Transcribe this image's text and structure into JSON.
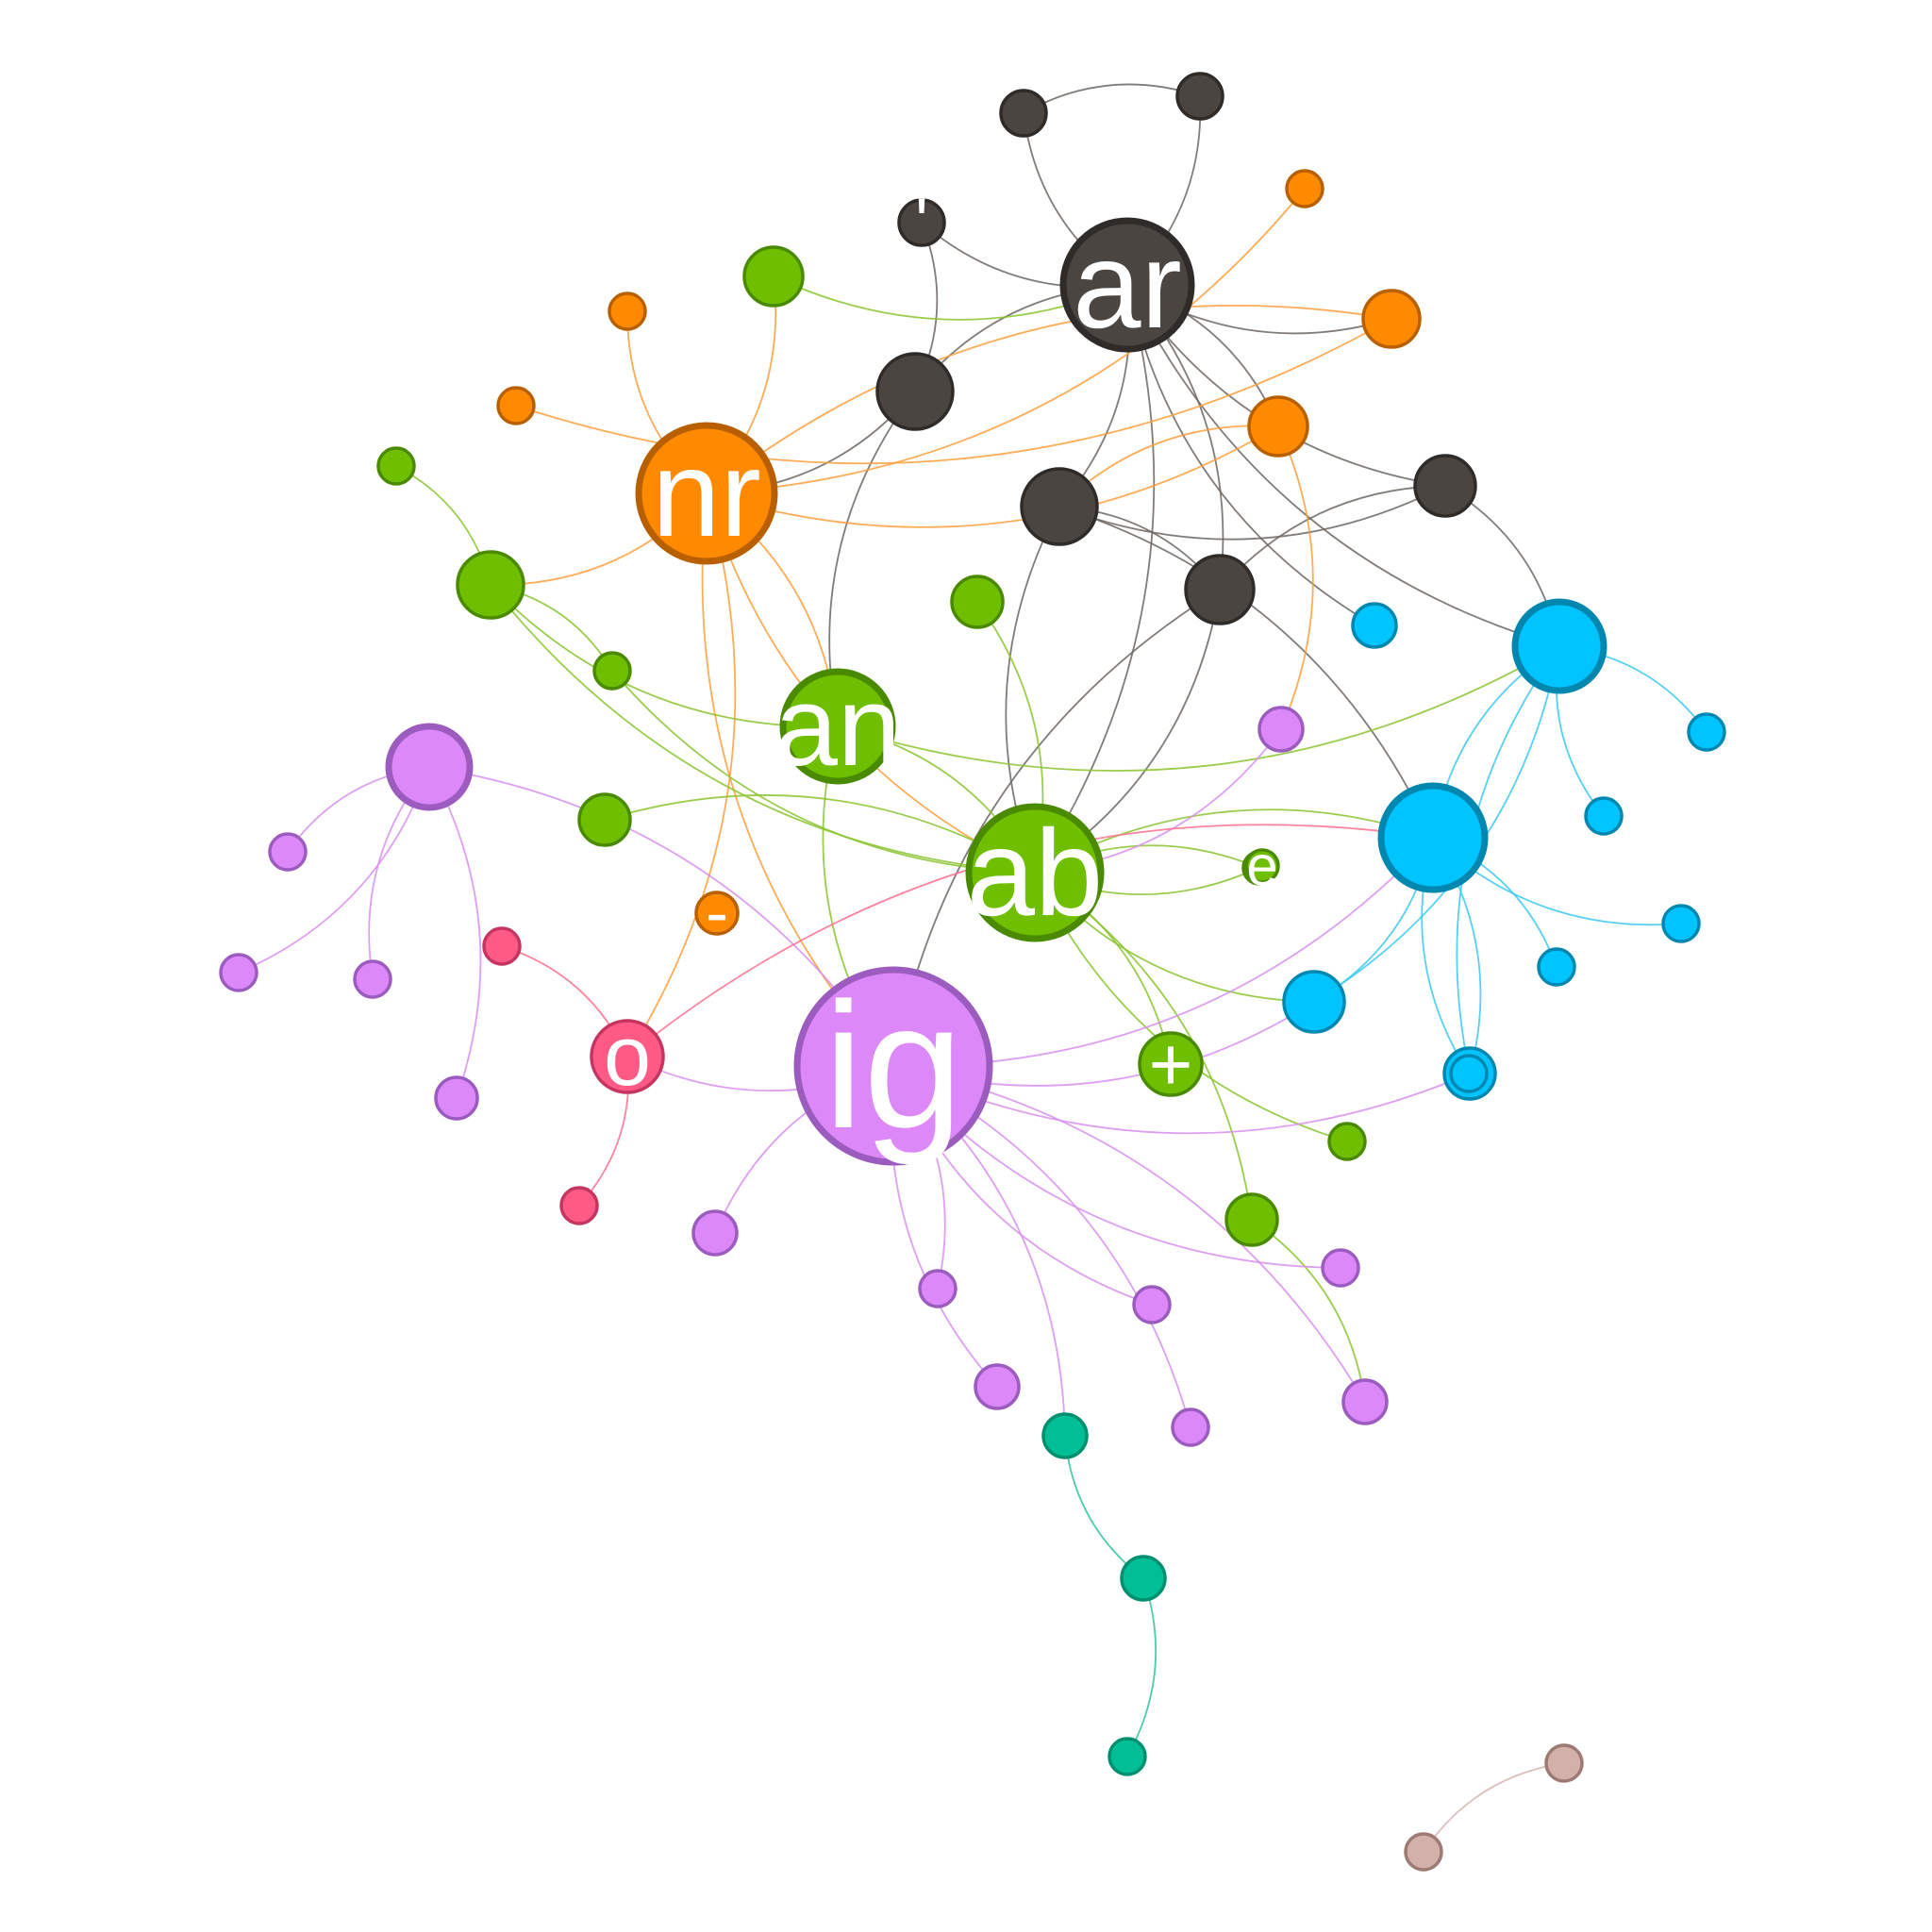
{
  "title": "",
  "colors": {
    "dark": {
      "fill": "#4a4540",
      "stroke": "#2f2b28",
      "edge": "#6b6560"
    },
    "orange": {
      "fill": "#ff8a00",
      "stroke": "#b86000",
      "edge": "#ff9d3a"
    },
    "green": {
      "fill": "#6fbf00",
      "stroke": "#4a8a00",
      "edge": "#8ac42e"
    },
    "purple": {
      "fill": "#dd88f8",
      "stroke": "#9c5cbf",
      "edge": "#d88ef0"
    },
    "pink": {
      "fill": "#ff5a86",
      "stroke": "#c43560",
      "edge": "#ff6f8f"
    },
    "blue": {
      "fill": "#00c4ff",
      "stroke": "#0087b0",
      "edge": "#39c8f0"
    },
    "teal": {
      "fill": "#00bf96",
      "stroke": "#00906f",
      "edge": "#2fc29f"
    },
    "rose": {
      "fill": "#d4b0aa",
      "stroke": "#9e7a74",
      "edge": "#d6b4b0"
    }
  },
  "labels": {
    "dark_hub": "ar",
    "orange_hub": "nr",
    "green_mid": "an",
    "green_hub": "ab",
    "purple_hub": "ig",
    "dark_small": "'",
    "pink_hub": "o",
    "orange_small": "-",
    "green_right": "e",
    "green_lower": "+"
  },
  "graph": {
    "nodes": [
      {
        "id": "d0",
        "group": "dark",
        "label": "dark_hub"
      },
      {
        "id": "d1",
        "group": "dark"
      },
      {
        "id": "d2",
        "group": "dark"
      },
      {
        "id": "d3",
        "group": "dark",
        "label": "dark_small"
      },
      {
        "id": "d4",
        "group": "dark"
      },
      {
        "id": "d5",
        "group": "dark"
      },
      {
        "id": "d6",
        "group": "dark"
      },
      {
        "id": "d7",
        "group": "dark"
      },
      {
        "id": "o0",
        "group": "orange",
        "label": "orange_hub"
      },
      {
        "id": "o1",
        "group": "orange"
      },
      {
        "id": "o2",
        "group": "orange"
      },
      {
        "id": "o3",
        "group": "orange"
      },
      {
        "id": "o4",
        "group": "orange"
      },
      {
        "id": "o5",
        "group": "orange"
      },
      {
        "id": "o6",
        "group": "orange",
        "label": "orange_small"
      },
      {
        "id": "g0",
        "group": "green",
        "label": "green_hub"
      },
      {
        "id": "g1",
        "group": "green",
        "label": "green_mid"
      },
      {
        "id": "g2",
        "group": "green"
      },
      {
        "id": "g3",
        "group": "green"
      },
      {
        "id": "g4",
        "group": "green"
      },
      {
        "id": "g5",
        "group": "green"
      },
      {
        "id": "g6",
        "group": "green"
      },
      {
        "id": "g7",
        "group": "green"
      },
      {
        "id": "g8",
        "group": "green"
      },
      {
        "id": "g9",
        "group": "green",
        "label": "green_right"
      },
      {
        "id": "g10",
        "group": "green",
        "label": "green_lower"
      },
      {
        "id": "g11",
        "group": "green"
      },
      {
        "id": "g12",
        "group": "green"
      },
      {
        "id": "p0",
        "group": "purple",
        "label": "purple_hub"
      },
      {
        "id": "p1",
        "group": "purple"
      },
      {
        "id": "p2",
        "group": "purple"
      },
      {
        "id": "p3",
        "group": "purple"
      },
      {
        "id": "p4",
        "group": "purple"
      },
      {
        "id": "p5",
        "group": "purple"
      },
      {
        "id": "p6",
        "group": "purple"
      },
      {
        "id": "p7",
        "group": "purple"
      },
      {
        "id": "p8",
        "group": "purple"
      },
      {
        "id": "p9",
        "group": "purple"
      },
      {
        "id": "p10",
        "group": "purple"
      },
      {
        "id": "p11",
        "group": "purple"
      },
      {
        "id": "p12",
        "group": "purple"
      },
      {
        "id": "p13",
        "group": "purple"
      },
      {
        "id": "k0",
        "group": "pink",
        "label": "pink_hub"
      },
      {
        "id": "k1",
        "group": "pink"
      },
      {
        "id": "k2",
        "group": "pink"
      },
      {
        "id": "b0",
        "group": "blue"
      },
      {
        "id": "b1",
        "group": "blue"
      },
      {
        "id": "b2",
        "group": "blue"
      },
      {
        "id": "b3",
        "group": "blue"
      },
      {
        "id": "b4",
        "group": "blue"
      },
      {
        "id": "b5",
        "group": "blue"
      },
      {
        "id": "b6",
        "group": "blue"
      },
      {
        "id": "b7",
        "group": "blue"
      },
      {
        "id": "b8",
        "group": "blue"
      },
      {
        "id": "b9",
        "group": "blue"
      },
      {
        "id": "t0",
        "group": "teal"
      },
      {
        "id": "t1",
        "group": "teal"
      },
      {
        "id": "t2",
        "group": "teal"
      },
      {
        "id": "r0",
        "group": "rose"
      },
      {
        "id": "r1",
        "group": "rose"
      }
    ],
    "edges": [
      [
        "d1",
        "d2"
      ],
      [
        "d1",
        "d0"
      ],
      [
        "d2",
        "d0"
      ],
      [
        "d3",
        "d0"
      ],
      [
        "d3",
        "d4"
      ],
      [
        "d0",
        "d4"
      ],
      [
        "d0",
        "d5"
      ],
      [
        "d0",
        "d6"
      ],
      [
        "d0",
        "d7"
      ],
      [
        "d5",
        "d6"
      ],
      [
        "d5",
        "d7"
      ],
      [
        "d6",
        "d7"
      ],
      [
        "d0",
        "o5"
      ],
      [
        "d0",
        "o1"
      ],
      [
        "d6",
        "b0"
      ],
      [
        "d0",
        "b0"
      ],
      [
        "d5",
        "b1"
      ],
      [
        "d0",
        "b2"
      ],
      [
        "d4",
        "o0"
      ],
      [
        "d4",
        "g1"
      ],
      [
        "d0",
        "g0"
      ],
      [
        "d5",
        "g0"
      ],
      [
        "d7",
        "g0"
      ],
      [
        "d7",
        "p0"
      ],
      [
        "o2",
        "o0"
      ],
      [
        "o3",
        "o0"
      ],
      [
        "o1",
        "o4"
      ],
      [
        "o1",
        "o0"
      ],
      [
        "o5",
        "o0"
      ],
      [
        "o5",
        "d5"
      ],
      [
        "o0",
        "g3"
      ],
      [
        "o0",
        "g2"
      ],
      [
        "o0",
        "g1"
      ],
      [
        "o0",
        "g0"
      ],
      [
        "o0",
        "k0"
      ],
      [
        "o0",
        "p0"
      ],
      [
        "o5",
        "p2"
      ],
      [
        "g2",
        "d0"
      ],
      [
        "g4",
        "g3"
      ],
      [
        "g3",
        "g0"
      ],
      [
        "g3",
        "g5"
      ],
      [
        "g3",
        "g1"
      ],
      [
        "g6",
        "g0"
      ],
      [
        "g5",
        "g0"
      ],
      [
        "g7",
        "g0"
      ],
      [
        "g8",
        "g0"
      ],
      [
        "g1",
        "g0"
      ],
      [
        "g1",
        "p0"
      ],
      [
        "g0",
        "g10"
      ],
      [
        "g0",
        "g11"
      ],
      [
        "g0",
        "g12"
      ],
      [
        "g0",
        "g9"
      ],
      [
        "g0",
        "b1"
      ],
      [
        "g1",
        "b0"
      ],
      [
        "g12",
        "p12"
      ],
      [
        "g0",
        "b3"
      ],
      [
        "p1",
        "p0"
      ],
      [
        "p1",
        "p3"
      ],
      [
        "p1",
        "p4"
      ],
      [
        "p1",
        "p5"
      ],
      [
        "p1",
        "p6"
      ],
      [
        "p0",
        "p7"
      ],
      [
        "p0",
        "p8"
      ],
      [
        "p0",
        "p9"
      ],
      [
        "p0",
        "p10"
      ],
      [
        "p0",
        "p11"
      ],
      [
        "p0",
        "p12"
      ],
      [
        "p0",
        "p13"
      ],
      [
        "p0",
        "k0"
      ],
      [
        "p0",
        "b3"
      ],
      [
        "p0",
        "t0"
      ],
      [
        "p0",
        "b1"
      ],
      [
        "p2",
        "g0"
      ],
      [
        "p0",
        "b4"
      ],
      [
        "k1",
        "k0"
      ],
      [
        "k2",
        "k0"
      ],
      [
        "k0",
        "b1"
      ],
      [
        "b0",
        "b1"
      ],
      [
        "b0",
        "b5"
      ],
      [
        "b0",
        "b6"
      ],
      [
        "b0",
        "b3"
      ],
      [
        "b0",
        "b4"
      ],
      [
        "b1",
        "b7"
      ],
      [
        "b1",
        "b8"
      ],
      [
        "b1",
        "b4"
      ],
      [
        "b1",
        "b9"
      ],
      [
        "b1",
        "b3"
      ],
      [
        "t0",
        "t1"
      ],
      [
        "t1",
        "t2"
      ],
      [
        "r0",
        "r1"
      ]
    ]
  }
}
